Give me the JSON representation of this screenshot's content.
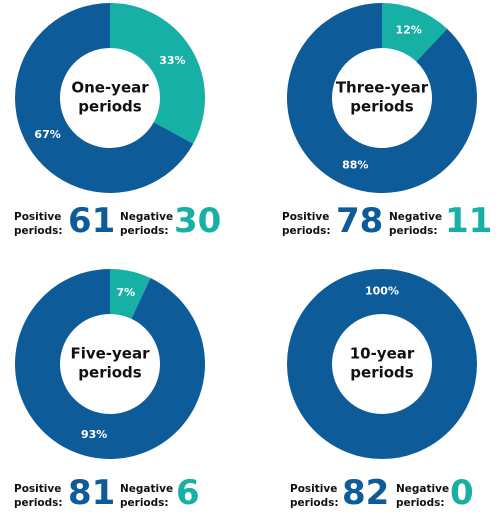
{
  "colors": {
    "positive": "#0d5c99",
    "negative": "#16b0a4",
    "text": "#111111"
  },
  "labels": {
    "positive_line1": "Positive",
    "positive_line2": "periods:",
    "negative_line1": "Negative",
    "negative_line2": "periods:"
  },
  "chart_data": [
    {
      "type": "pie",
      "title": "One-year periods",
      "title_lines": [
        "One-year",
        "periods"
      ],
      "slices": [
        {
          "label": "Positive",
          "value": 67,
          "text": "67%"
        },
        {
          "label": "Negative",
          "value": 33,
          "text": "33%"
        }
      ],
      "positive_count": "61",
      "negative_count": "30"
    },
    {
      "type": "pie",
      "title": "Three-year periods",
      "title_lines": [
        "Three-year",
        "periods"
      ],
      "slices": [
        {
          "label": "Positive",
          "value": 88,
          "text": "88%"
        },
        {
          "label": "Negative",
          "value": 12,
          "text": "12%"
        }
      ],
      "positive_count": "78",
      "negative_count": "11"
    },
    {
      "type": "pie",
      "title": "Five-year periods",
      "title_lines": [
        "Five-year",
        "periods"
      ],
      "slices": [
        {
          "label": "Positive",
          "value": 93,
          "text": "93%"
        },
        {
          "label": "Negative",
          "value": 7,
          "text": "7%"
        }
      ],
      "positive_count": "81",
      "negative_count": "6"
    },
    {
      "type": "pie",
      "title": "10-year periods",
      "title_lines": [
        "10-year",
        "periods"
      ],
      "slices": [
        {
          "label": "Positive",
          "value": 100,
          "text": "100%"
        },
        {
          "label": "Negative",
          "value": 0,
          "text": ""
        }
      ],
      "positive_count": "82",
      "negative_count": "0"
    }
  ]
}
